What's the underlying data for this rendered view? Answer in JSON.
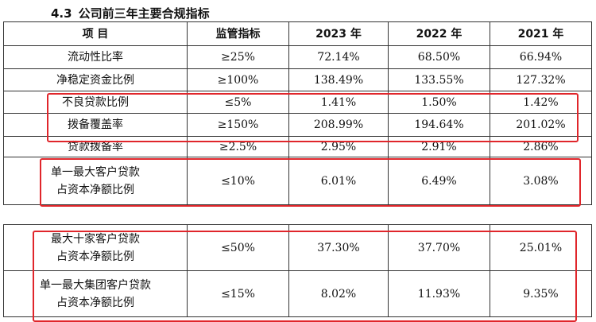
{
  "section": {
    "number": "4.3",
    "title": "公司前三年主要合规指标"
  },
  "headers": {
    "item": "项    目",
    "requirement": "监管指标",
    "years": [
      "2023 年",
      "2022 年",
      "2021 年"
    ]
  },
  "rows_top": [
    {
      "item": [
        "流动性比率"
      ],
      "requirement": "≥25%",
      "values": [
        "72.14%",
        "68.50%",
        "66.94%"
      ]
    },
    {
      "item": [
        "净稳定资金比例"
      ],
      "requirement": "≥100%",
      "values": [
        "138.49%",
        "133.55%",
        "127.32%"
      ]
    },
    {
      "item": [
        "不良贷款比例"
      ],
      "requirement": "≤5%",
      "values": [
        "1.41%",
        "1.50%",
        "1.42%"
      ]
    },
    {
      "item": [
        "拨备覆盖率"
      ],
      "requirement": "≥150%",
      "values": [
        "208.99%",
        "194.64%",
        "201.02%"
      ]
    },
    {
      "item": [
        "贷款拨备率"
      ],
      "requirement": "≥2.5%",
      "values": [
        "2.95%",
        "2.91%",
        "2.86%"
      ]
    },
    {
      "item": [
        "单一最大客户贷款",
        "占资本净额比例"
      ],
      "requirement": "≤10%",
      "values": [
        "6.01%",
        "6.49%",
        "3.08%"
      ]
    }
  ],
  "rows_bottom": [
    {
      "item": [
        "最大十家客户贷款",
        "占资本净额比例"
      ],
      "requirement": "≤50%",
      "values": [
        "37.30%",
        "37.70%",
        "25.01%"
      ]
    },
    {
      "item": [
        "单一最大集团客户贷款",
        "占资本净额比例"
      ],
      "requirement": "≤15%",
      "values": [
        "8.02%",
        "11.93%",
        "9.35%"
      ]
    }
  ],
  "highlight_color": "#e0262b"
}
